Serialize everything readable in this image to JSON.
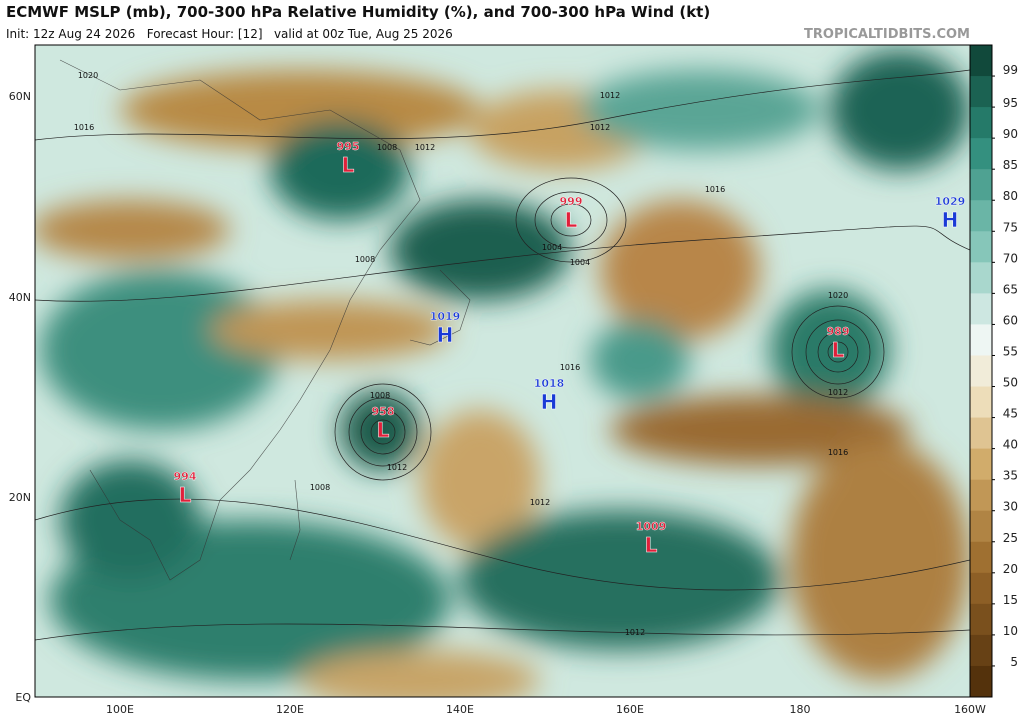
{
  "header": {
    "title": "ECMWF MSLP (mb), 700-300 hPa Relative Humidity (%), and 700-300 hPa Wind (kt)",
    "subtitle": "Init: 12z Aug 24 2026   Forecast Hour: [12]   valid at 00z Tue, Aug 25 2026",
    "site": "TROPICALTIDBITS.COM"
  },
  "map": {
    "lat_labels": [
      "60N",
      "40N",
      "20N",
      "EQ"
    ],
    "lon_labels": [
      "100E",
      "120E",
      "140E",
      "160E",
      "180",
      "160W"
    ],
    "centers": [
      {
        "value": 995,
        "type": "L"
      },
      {
        "value": 999,
        "type": "L"
      },
      {
        "value": 1029,
        "type": "H"
      },
      {
        "value": 1019,
        "type": "H"
      },
      {
        "value": 1018,
        "type": "H"
      },
      {
        "value": 989,
        "type": "L"
      },
      {
        "value": 958,
        "type": "L"
      },
      {
        "value": 994,
        "type": "L"
      },
      {
        "value": 1009,
        "type": "L"
      }
    ],
    "isobar_labels": [
      1020,
      1016,
      1012,
      1008,
      1004,
      1012,
      1016,
      1008,
      1012,
      1016,
      1020,
      1012,
      1008,
      1012,
      1016,
      1012,
      1004,
      1008,
      1012
    ]
  },
  "colorbar": {
    "ticks": [
      99,
      95,
      90,
      85,
      80,
      75,
      70,
      65,
      60,
      55,
      50,
      45,
      40,
      35,
      30,
      25,
      20,
      15,
      10,
      5
    ]
  }
}
